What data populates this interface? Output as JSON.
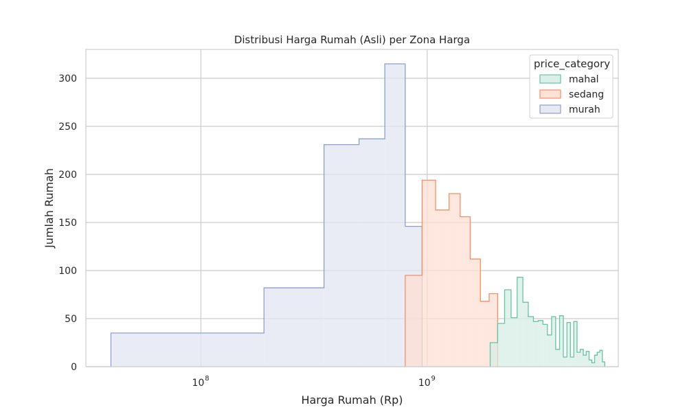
{
  "chart_data": {
    "type": "histogram",
    "title": "Distribusi Harga Rumah (Asli) per Zona Harga",
    "xlabel": "Harga Rumah (Rp)",
    "ylabel": "Jumlah Rumah",
    "x_scale": "log",
    "xlim": [
      31000000,
      7000000000
    ],
    "ylim": [
      0,
      330
    ],
    "x_tick_values": [
      100000000,
      1000000000
    ],
    "x_ticks": [
      {
        "base": "10",
        "exp": "8"
      },
      {
        "base": "10",
        "exp": "9"
      }
    ],
    "y_ticks": [
      0,
      50,
      100,
      150,
      200,
      250,
      300
    ],
    "grid": true,
    "legend": {
      "title": "price_category",
      "position": "top-right",
      "entries": [
        "mahal",
        "sedang",
        "murah"
      ]
    },
    "series": [
      {
        "name": "murah",
        "color": "#8da0cb",
        "fill": "#e3e6f1",
        "edges": [
          40000000,
          190000000,
          350000000,
          500000000,
          650000000,
          800000000,
          950000000
        ],
        "counts": [
          35,
          82,
          231,
          237,
          315,
          146
        ]
      },
      {
        "name": "sedang",
        "color": "#fc8d62",
        "fill": "#fedfd3",
        "edges": [
          800000000,
          950000000,
          1090000000,
          1250000000,
          1400000000,
          1550000000,
          1720000000,
          1880000000,
          2050000000
        ],
        "counts": [
          95,
          194,
          163,
          180,
          156,
          112,
          68,
          76
        ]
      },
      {
        "name": "mahal",
        "color": "#66c2a5",
        "fill": "#d7ede6",
        "edges": [
          1900000000,
          2050000000,
          2200000000,
          2350000000,
          2500000000,
          2650000000,
          2800000000,
          2950000000,
          3100000000,
          3250000000,
          3400000000,
          3550000000,
          3700000000,
          3850000000,
          4000000000,
          4150000000,
          4300000000,
          4450000000,
          4600000000,
          4750000000,
          4900000000,
          5050000000,
          5200000000,
          5350000000,
          5500000000,
          5650000000,
          5800000000,
          5950000000,
          6100000000
        ],
        "counts": [
          25,
          45,
          80,
          51,
          93,
          67,
          52,
          47,
          48,
          44,
          33,
          52,
          18,
          53,
          10,
          46,
          10,
          47,
          15,
          18,
          12,
          16,
          7,
          4,
          12,
          15,
          17,
          5
        ]
      }
    ]
  }
}
